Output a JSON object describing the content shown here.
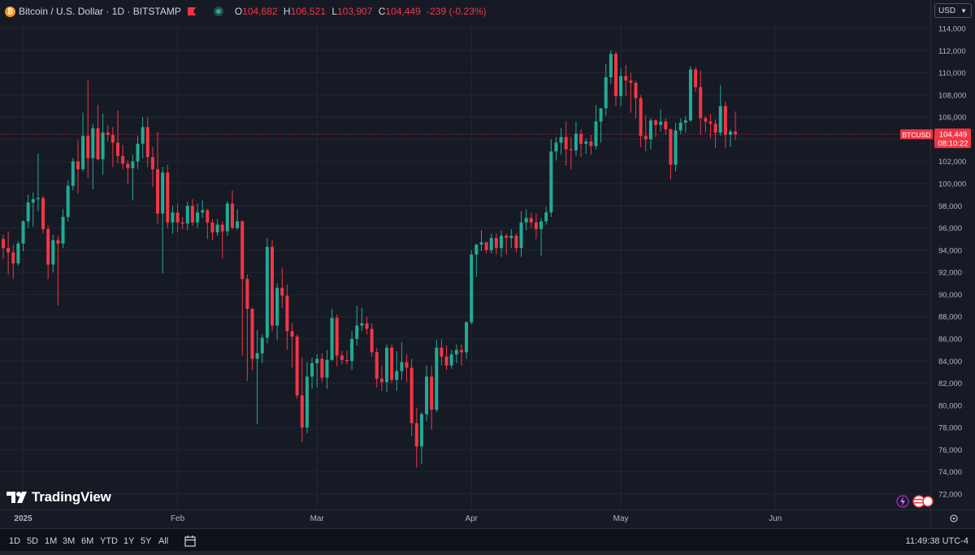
{
  "header": {
    "symbol_title": "Bitcoin / U.S. Dollar · 1D · BITSTAMP",
    "ohlc": [
      {
        "key": "O",
        "value": "104,682"
      },
      {
        "key": "H",
        "value": "106,521"
      },
      {
        "key": "L",
        "value": "103,907"
      },
      {
        "key": "C",
        "value": "104,449"
      },
      {
        "key": "",
        "value": "-239 (-0.23%)"
      }
    ],
    "currency": "USD"
  },
  "price_label": {
    "symbol": "BTCUSD",
    "price": "104,449",
    "countdown": "08:10:22"
  },
  "brand": "TradingView",
  "ranges": [
    "1D",
    "5D",
    "1M",
    "3M",
    "6M",
    "YTD",
    "1Y",
    "5Y",
    "All"
  ],
  "clock": "11:49:38 UTC-4",
  "colors": {
    "background": "#161a25",
    "up": "#22ab94",
    "down": "#f23645",
    "grid": "#232733",
    "text": "#d1d4dc"
  },
  "chart_data": {
    "type": "candlestick",
    "title": "Bitcoin / U.S. Dollar · 1D · BITSTAMP",
    "ylim": [
      71000,
      115500
    ],
    "y_ticks": [
      72000,
      74000,
      76000,
      78000,
      80000,
      82000,
      84000,
      86000,
      88000,
      90000,
      92000,
      94000,
      96000,
      98000,
      100000,
      102000,
      104000,
      106000,
      108000,
      110000,
      112000,
      114000
    ],
    "y_tick_labels": [
      "72,000",
      "74,000",
      "76,000",
      "78,000",
      "80,000",
      "82,000",
      "84,000",
      "86,000",
      "88,000",
      "90,000",
      "92,000",
      "94,000",
      "96,000",
      "98,000",
      "100,000",
      "102,000",
      "104,000",
      "106,000",
      "108,000",
      "110,000",
      "112,000",
      "114,000"
    ],
    "x_labels": [
      {
        "label": "2025",
        "index": 4
      },
      {
        "label": "Feb",
        "index": 35
      },
      {
        "label": "Mar",
        "index": 63
      },
      {
        "label": "Apr",
        "index": 94
      },
      {
        "label": "May",
        "index": 124
      },
      {
        "label": "Jun",
        "index": 155
      }
    ],
    "last_price": 104449,
    "ohlc": [
      [
        95000,
        95400,
        93200,
        94200
      ],
      [
        94200,
        95700,
        91800,
        93800
      ],
      [
        93800,
        94500,
        91400,
        92800
      ],
      [
        92800,
        94800,
        92600,
        94600
      ],
      [
        94600,
        96700,
        93900,
        96600
      ],
      [
        96600,
        99000,
        96000,
        98300
      ],
      [
        98300,
        99200,
        96100,
        98600
      ],
      [
        98600,
        102700,
        97500,
        98700
      ],
      [
        98700,
        98900,
        95500,
        95900
      ],
      [
        95900,
        96200,
        91400,
        92700
      ],
      [
        92700,
        95400,
        92000,
        94900
      ],
      [
        94900,
        95300,
        89000,
        94600
      ],
      [
        94600,
        97700,
        94200,
        97000
      ],
      [
        97000,
        100300,
        96600,
        99800
      ],
      [
        99800,
        102300,
        99400,
        102000
      ],
      [
        102000,
        103900,
        99100,
        101300
      ],
      [
        101300,
        106400,
        101100,
        104300
      ],
      [
        104300,
        109300,
        100500,
        102300
      ],
      [
        102300,
        105400,
        99500,
        105000
      ],
      [
        105000,
        107100,
        102100,
        102200
      ],
      [
        102200,
        106300,
        100800,
        104600
      ],
      [
        104600,
        105300,
        103800,
        104400
      ],
      [
        104400,
        105100,
        101500,
        103700
      ],
      [
        103700,
        106600,
        101800,
        102500
      ],
      [
        102500,
        103500,
        101300,
        101800
      ],
      [
        101800,
        102100,
        100000,
        101400
      ],
      [
        101400,
        102600,
        98500,
        102000
      ],
      [
        102000,
        104300,
        101300,
        103600
      ],
      [
        103600,
        106000,
        102300,
        105100
      ],
      [
        105100,
        106000,
        101500,
        102400
      ],
      [
        102400,
        103300,
        99700,
        101300
      ],
      [
        101300,
        104700,
        96400,
        97300
      ],
      [
        97300,
        101500,
        91900,
        101000
      ],
      [
        101000,
        101700,
        96000,
        96500
      ],
      [
        96500,
        98000,
        95500,
        97400
      ],
      [
        97400,
        98200,
        95600,
        96500
      ],
      [
        96500,
        97000,
        95900,
        96400
      ],
      [
        96400,
        98400,
        95800,
        98000
      ],
      [
        98000,
        98600,
        96200,
        96500
      ],
      [
        96500,
        98200,
        96000,
        97400
      ],
      [
        97400,
        98500,
        96900,
        97600
      ],
      [
        97600,
        97700,
        95000,
        96500
      ],
      [
        96500,
        96800,
        94900,
        95600
      ],
      [
        95600,
        96800,
        95300,
        96300
      ],
      [
        96300,
        96600,
        93300,
        95700
      ],
      [
        95700,
        98400,
        95300,
        98200
      ],
      [
        98200,
        99400,
        95900,
        96000
      ],
      [
        96000,
        97700,
        95800,
        96600
      ],
      [
        96600,
        96700,
        84500,
        91400
      ],
      [
        91400,
        91800,
        82200,
        88700
      ],
      [
        88700,
        88800,
        83200,
        84200
      ],
      [
        84200,
        86800,
        78300,
        84700
      ],
      [
        84700,
        86400,
        83800,
        86100
      ],
      [
        86100,
        95100,
        85600,
        94300
      ],
      [
        94300,
        94900,
        86700,
        87200
      ],
      [
        87200,
        91000,
        85900,
        90600
      ],
      [
        90600,
        92400,
        88800,
        89900
      ],
      [
        89900,
        90900,
        85000,
        86700
      ],
      [
        86700,
        87400,
        83400,
        86200
      ],
      [
        86200,
        86400,
        80600,
        80900
      ],
      [
        80900,
        84300,
        76700,
        78000
      ],
      [
        78000,
        83900,
        77500,
        82600
      ],
      [
        82600,
        84300,
        81500,
        83800
      ],
      [
        83800,
        84600,
        81600,
        84200
      ],
      [
        84200,
        84700,
        82100,
        82500
      ],
      [
        82500,
        85000,
        81500,
        84100
      ],
      [
        84100,
        88700,
        84000,
        87900
      ],
      [
        87900,
        88200,
        83500,
        84500
      ],
      [
        84500,
        84900,
        83700,
        84100
      ],
      [
        84100,
        84900,
        83700,
        84000
      ],
      [
        84000,
        86700,
        83200,
        86000
      ],
      [
        86000,
        89000,
        85400,
        87200
      ],
      [
        87200,
        88800,
        86700,
        87400
      ],
      [
        87400,
        88000,
        86400,
        86900
      ],
      [
        86900,
        87400,
        84400,
        84800
      ],
      [
        84800,
        85200,
        81600,
        82400
      ],
      [
        82400,
        83600,
        81300,
        82100
      ],
      [
        82100,
        85500,
        81200,
        85200
      ],
      [
        85200,
        85500,
        82000,
        82300
      ],
      [
        82300,
        84900,
        81300,
        83100
      ],
      [
        83100,
        85700,
        82300,
        83900
      ],
      [
        83900,
        84600,
        82100,
        83400
      ],
      [
        83400,
        84200,
        77200,
        78400
      ],
      [
        78400,
        79800,
        74400,
        76300
      ],
      [
        76300,
        79400,
        74700,
        79200
      ],
      [
        79200,
        83600,
        78600,
        82600
      ],
      [
        82600,
        83600,
        77800,
        79600
      ],
      [
        79600,
        85900,
        79400,
        85200
      ],
      [
        85200,
        86000,
        83600,
        84400
      ],
      [
        84400,
        85400,
        83200,
        83600
      ],
      [
        83600,
        85000,
        83300,
        84600
      ],
      [
        84600,
        85500,
        83800,
        85000
      ],
      [
        85000,
        85500,
        83600,
        84800
      ],
      [
        84800,
        87600,
        84200,
        87500
      ],
      [
        87500,
        94000,
        87300,
        93600
      ],
      [
        93600,
        94600,
        91600,
        94500
      ],
      [
        94500,
        95800,
        93900,
        94700
      ],
      [
        94700,
        94800,
        93700,
        94000
      ],
      [
        94000,
        95500,
        93700,
        95100
      ],
      [
        95100,
        95500,
        93600,
        94200
      ],
      [
        94200,
        95800,
        93400,
        95300
      ],
      [
        95300,
        95500,
        93600,
        95100
      ],
      [
        95100,
        95900,
        94200,
        95300
      ],
      [
        95300,
        95500,
        93800,
        94200
      ],
      [
        94200,
        97500,
        93400,
        96500
      ],
      [
        96500,
        97700,
        95800,
        96900
      ],
      [
        96900,
        97400,
        96000,
        96500
      ],
      [
        96500,
        97300,
        95000,
        95900
      ],
      [
        95900,
        96900,
        93500,
        96600
      ],
      [
        96600,
        97900,
        96300,
        97400
      ],
      [
        97400,
        104000,
        97000,
        102900
      ],
      [
        102900,
        104200,
        102100,
        103700
      ],
      [
        103700,
        105000,
        102600,
        104200
      ],
      [
        104200,
        105600,
        101600,
        103100
      ],
      [
        103100,
        104200,
        101300,
        103000
      ],
      [
        103000,
        105600,
        102500,
        104500
      ],
      [
        104500,
        104900,
        102400,
        103600
      ],
      [
        103600,
        104100,
        102700,
        103800
      ],
      [
        103800,
        104400,
        102600,
        103400
      ],
      [
        103400,
        107100,
        103100,
        105600
      ],
      [
        105600,
        106500,
        103700,
        106800
      ],
      [
        106800,
        110800,
        106100,
        109600
      ],
      [
        109600,
        112000,
        109000,
        111700
      ],
      [
        111700,
        111900,
        107000,
        107900
      ],
      [
        107900,
        110400,
        107000,
        109700
      ],
      [
        109700,
        110700,
        107900,
        109300
      ],
      [
        109300,
        110000,
        106400,
        109100
      ],
      [
        109100,
        109300,
        105900,
        107700
      ],
      [
        107700,
        108000,
        103300,
        104300
      ],
      [
        104300,
        106200,
        102900,
        104000
      ],
      [
        104000,
        105900,
        103100,
        105700
      ],
      [
        105700,
        105800,
        104200,
        105300
      ],
      [
        105300,
        106700,
        104700,
        105600
      ],
      [
        105600,
        105900,
        104400,
        104900
      ],
      [
        104900,
        105000,
        100400,
        101700
      ],
      [
        101700,
        105500,
        101100,
        104800
      ],
      [
        104800,
        105900,
        104500,
        105500
      ],
      [
        105500,
        106100,
        104600,
        105700
      ],
      [
        105700,
        110600,
        105600,
        110300
      ],
      [
        110300,
        110500,
        108300,
        108700
      ],
      [
        108700,
        110200,
        104400,
        105900
      ],
      [
        105900,
        106100,
        104600,
        105600
      ],
      [
        105600,
        106300,
        104100,
        105400
      ],
      [
        105400,
        105800,
        103200,
        104600
      ],
      [
        104600,
        108900,
        104300,
        107000
      ],
      [
        107000,
        107400,
        103200,
        104400
      ],
      [
        104400,
        104900,
        103300,
        104700
      ],
      [
        104700,
        106521,
        103907,
        104449
      ]
    ]
  }
}
